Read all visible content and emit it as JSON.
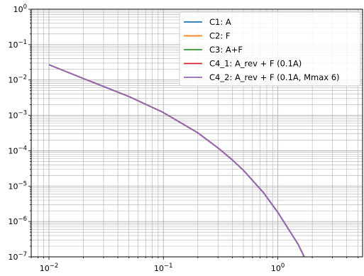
{
  "chart_data": {
    "type": "line",
    "title": "",
    "xlabel": "",
    "ylabel": "",
    "xscale": "log",
    "yscale": "log",
    "xlim": [
      0.007,
      5.5
    ],
    "ylim": [
      1e-07,
      1
    ],
    "grid": "major and minor",
    "legend_position": "top-right",
    "x_ticks": [
      {
        "value": 0.01,
        "base": "10",
        "exp": "−2"
      },
      {
        "value": 0.1,
        "base": "10",
        "exp": "−1"
      },
      {
        "value": 1,
        "base": "10",
        "exp": "0"
      }
    ],
    "y_ticks": [
      {
        "value": 1,
        "base": "10",
        "exp": "0"
      },
      {
        "value": 0.1,
        "base": "10",
        "exp": "−1"
      },
      {
        "value": 0.01,
        "base": "10",
        "exp": "−2"
      },
      {
        "value": 0.001,
        "base": "10",
        "exp": "−3"
      },
      {
        "value": 0.0001,
        "base": "10",
        "exp": "−4"
      },
      {
        "value": 1e-05,
        "base": "10",
        "exp": "−5"
      },
      {
        "value": 1e-06,
        "base": "10",
        "exp": "−6"
      },
      {
        "value": 1e-07,
        "base": "10",
        "exp": "−7"
      }
    ],
    "x": [
      0.01,
      0.02,
      0.05,
      0.1,
      0.2,
      0.3,
      0.4,
      0.5,
      0.75,
      1.0,
      1.5,
      1.7
    ],
    "series": [
      {
        "name": "C1: A",
        "color": "#1f77b4",
        "values": [
          0.027,
          0.011,
          0.0034,
          0.0012,
          0.00032,
          0.00012,
          5.5e-05,
          2.8e-05,
          6.5e-06,
          1.8e-06,
          2.3e-07,
          1e-07
        ]
      },
      {
        "name": "C2: F",
        "color": "#ff7f0e",
        "values": [
          0.027,
          0.011,
          0.0034,
          0.0012,
          0.00032,
          0.00012,
          5.5e-05,
          2.8e-05,
          6.5e-06,
          1.8e-06,
          2.3e-07,
          1e-07
        ]
      },
      {
        "name": "C3: A+F",
        "color": "#2ca02c",
        "values": [
          0.027,
          0.011,
          0.0034,
          0.0012,
          0.00032,
          0.00012,
          5.5e-05,
          2.8e-05,
          6.5e-06,
          1.8e-06,
          2.3e-07,
          1e-07
        ]
      },
      {
        "name": "C4_1: A_rev + F (0.1A)",
        "color": "#d62728",
        "values": [
          0.027,
          0.011,
          0.0034,
          0.0012,
          0.00032,
          0.00012,
          5.5e-05,
          2.8e-05,
          6.5e-06,
          1.8e-06,
          2.3e-07,
          1e-07
        ]
      },
      {
        "name": "C4_2: A_rev + F (0.1A, Mmax 6)",
        "color": "#9467bd",
        "values": [
          0.027,
          0.011,
          0.0034,
          0.0012,
          0.00032,
          0.00012,
          5.5e-05,
          2.8e-05,
          6.5e-06,
          1.8e-06,
          2.3e-07,
          1e-07
        ]
      }
    ]
  }
}
